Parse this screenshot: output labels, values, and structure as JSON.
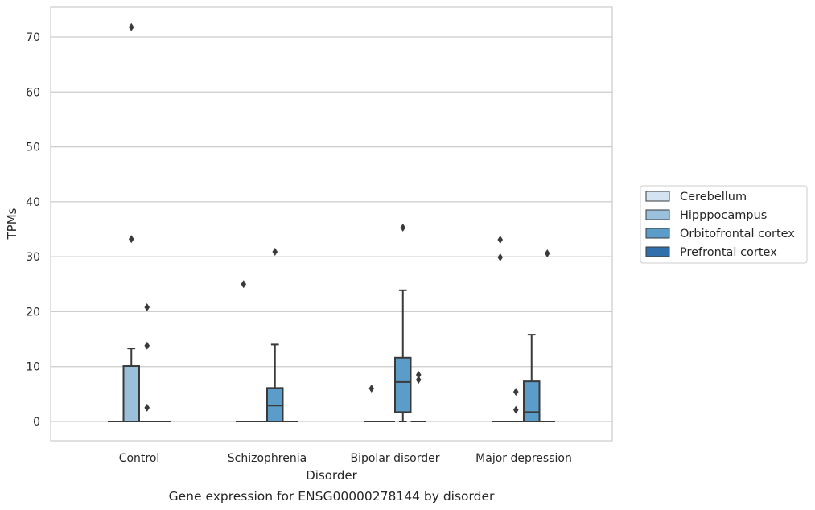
{
  "chart_data": {
    "type": "boxplot",
    "title": "Gene expression for ENSG00000278144 by disorder",
    "xlabel": "Disorder",
    "ylabel": "TPMs",
    "ylim": [
      -3.5,
      75.5
    ],
    "yticks": [
      0,
      10,
      20,
      30,
      40,
      50,
      60,
      70
    ],
    "categories": [
      "Control",
      "Schizophrenia",
      "Bipolar disorder",
      "Major depression"
    ],
    "legend_position": "right",
    "grid": "horizontal",
    "series": [
      {
        "name": "Cerebellum",
        "color": "#d3e3f1",
        "boxes": [
          {
            "q1": 0,
            "median": 0,
            "q3": 0,
            "whislo": 0,
            "whishi": 0,
            "fliers": []
          },
          {
            "q1": 0,
            "median": 0,
            "q3": 0,
            "whislo": 0,
            "whishi": 0,
            "fliers": [
              25
            ]
          },
          {
            "q1": 0,
            "median": 0,
            "q3": 0,
            "whislo": 0,
            "whishi": 0,
            "fliers": [
              6
            ]
          },
          {
            "q1": 0,
            "median": 0,
            "q3": 0,
            "whislo": 0,
            "whishi": 0,
            "fliers": [
              33.1,
              29.9
            ]
          }
        ]
      },
      {
        "name": "Hipppocampus",
        "color": "#9ac0dc",
        "boxes": [
          {
            "q1": 0,
            "median": 0,
            "q3": 10.1,
            "whislo": 0,
            "whishi": 13.3,
            "fliers": [
              71.8,
              33.2
            ]
          },
          {
            "q1": 0,
            "median": 0,
            "q3": 0,
            "whislo": 0,
            "whishi": 0,
            "fliers": []
          },
          {
            "q1": 0,
            "median": 0,
            "q3": 0,
            "whislo": 0,
            "whishi": 0,
            "fliers": []
          },
          {
            "q1": 0,
            "median": 0,
            "q3": 0,
            "whislo": 0,
            "whishi": 0,
            "fliers": [
              5.4,
              2.1
            ]
          }
        ]
      },
      {
        "name": "Orbitofrontal cortex",
        "color": "#5b9cc8",
        "boxes": [
          {
            "q1": 0,
            "median": 0,
            "q3": 0,
            "whislo": 0,
            "whishi": 0,
            "fliers": [
              20.8,
              13.8,
              2.5
            ]
          },
          {
            "q1": 0,
            "median": 2.9,
            "q3": 6.1,
            "whislo": 0,
            "whishi": 14.0,
            "fliers": [
              30.9
            ]
          },
          {
            "q1": 1.7,
            "median": 7.2,
            "q3": 11.6,
            "whislo": 0,
            "whishi": 23.9,
            "fliers": [
              35.3
            ]
          },
          {
            "q1": 0,
            "median": 1.7,
            "q3": 7.3,
            "whislo": 0,
            "whishi": 15.8,
            "fliers": []
          }
        ]
      },
      {
        "name": "Prefrontal cortex",
        "color": "#2f6fab",
        "boxes": [
          {
            "q1": 0,
            "median": 0,
            "q3": 0,
            "whislo": 0,
            "whishi": 0,
            "fliers": []
          },
          {
            "q1": 0,
            "median": 0,
            "q3": 0,
            "whislo": 0,
            "whishi": 0,
            "fliers": []
          },
          {
            "q1": 0,
            "median": 0,
            "q3": 0,
            "whislo": 0,
            "whishi": 0,
            "fliers": [
              8.5,
              7.6
            ]
          },
          {
            "q1": 0,
            "median": 0,
            "q3": 0,
            "whislo": 0,
            "whishi": 0,
            "fliers": [
              30.6
            ]
          }
        ]
      }
    ]
  }
}
